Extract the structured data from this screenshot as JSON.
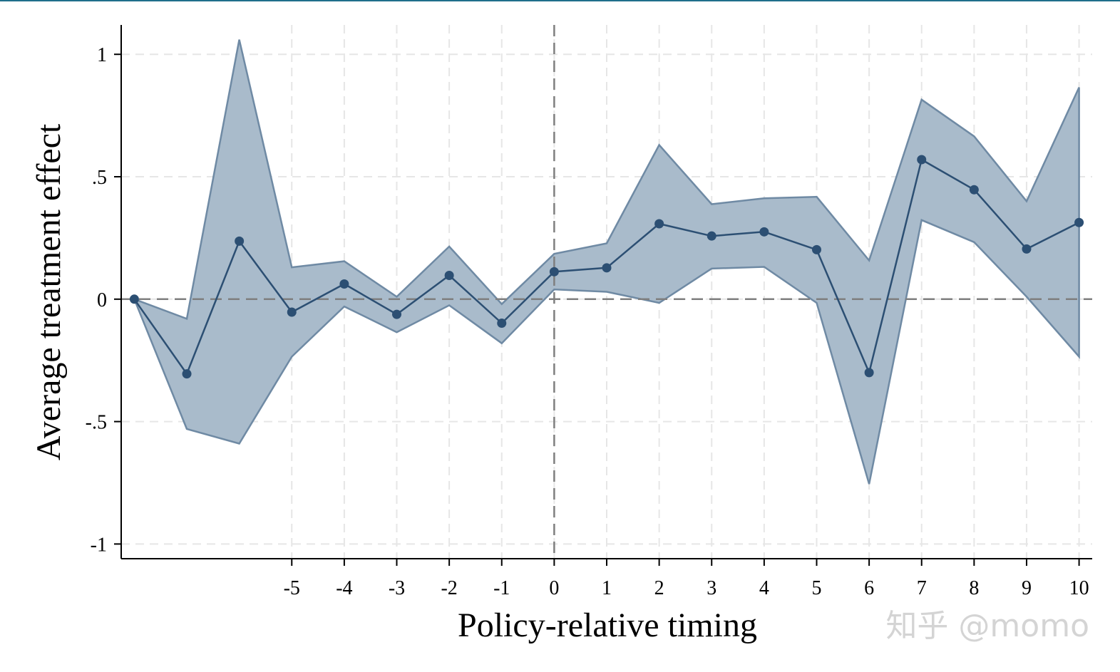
{
  "chart_data": {
    "type": "line",
    "title": "",
    "xlabel": "Policy-relative timing",
    "ylabel": "Average treatment effect",
    "xlim": [
      -8.25,
      10.25
    ],
    "ylim": [
      -1.06,
      1.12
    ],
    "grid": true,
    "x_tick_values": [
      -5,
      -4,
      -3,
      -2,
      -1,
      0,
      1,
      2,
      3,
      4,
      5,
      6,
      7,
      8,
      9,
      10
    ],
    "x_tick_labels": [
      "-5",
      "-4",
      "-3",
      "-2",
      "-1",
      "0",
      "1",
      "2",
      "3",
      "4",
      "5",
      "6",
      "7",
      "8",
      "9",
      "10"
    ],
    "y_tick_values": [
      1,
      0.5,
      0,
      -0.5,
      -1
    ],
    "y_tick_labels": [
      "1",
      ".5",
      "0",
      "-.5",
      "-1"
    ],
    "reference_lines": {
      "x": 0,
      "y": 0
    },
    "series": [
      {
        "x": [
          -8,
          -7,
          -6,
          -5,
          -4,
          -3,
          -2,
          -1,
          0,
          1,
          2,
          3,
          4,
          5,
          6,
          7,
          8,
          9,
          10
        ],
        "values": [
          0,
          -0.305,
          0.237,
          -0.053,
          0.062,
          -0.062,
          0.097,
          -0.098,
          0.112,
          0.128,
          0.308,
          0.258,
          0.275,
          0.202,
          -0.3,
          0.57,
          0.447,
          0.205,
          0.313
        ],
        "ci_lower": [
          0,
          -0.53,
          -0.59,
          -0.235,
          -0.03,
          -0.135,
          -0.025,
          -0.18,
          0.04,
          0.03,
          -0.015,
          0.125,
          0.132,
          -0.015,
          -0.755,
          0.323,
          0.233,
          0.01,
          -0.235
        ],
        "ci_upper": [
          0,
          -0.08,
          1.06,
          0.13,
          0.155,
          0.01,
          0.215,
          -0.02,
          0.185,
          0.228,
          0.63,
          0.388,
          0.412,
          0.418,
          0.158,
          0.815,
          0.665,
          0.4,
          0.865
        ]
      }
    ],
    "colors": {
      "line": "#2c4f73",
      "band_fill": "#a9bbcb",
      "band_edge": "#6f8aa4",
      "reference_line": "#7f7f7f",
      "grid": "#e6e6e6"
    }
  },
  "watermark": "知乎 @momo"
}
